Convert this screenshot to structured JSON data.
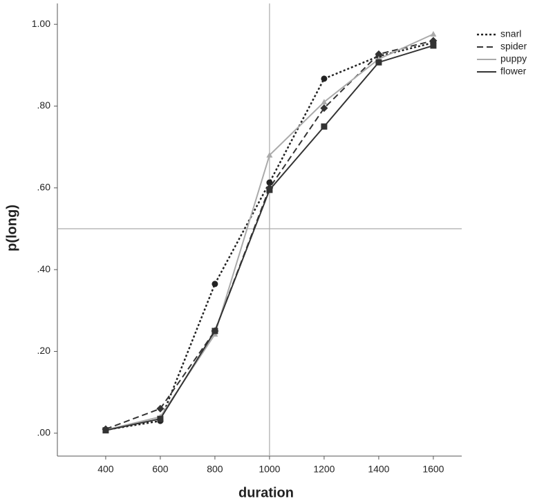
{
  "chart_data": {
    "type": "line",
    "x_label": "duration",
    "y_label": "p(long)",
    "x": [
      400,
      600,
      800,
      1000,
      1200,
      1400,
      1600
    ],
    "series": [
      {
        "name": "snarl",
        "color": "#222222",
        "dash": "dotted",
        "marker": "circle",
        "values": [
          0.008,
          0.03,
          0.365,
          0.613,
          0.867,
          0.922,
          0.955
        ]
      },
      {
        "name": "spider",
        "color": "#333333",
        "dash": "dashed",
        "marker": "diamond",
        "values": [
          0.01,
          0.06,
          0.25,
          0.6,
          0.795,
          0.927,
          0.96
        ]
      },
      {
        "name": "puppy",
        "color": "#aaaaaa",
        "dash": "solid",
        "marker": "triangle",
        "values": [
          0.008,
          0.04,
          0.242,
          0.68,
          0.81,
          0.915,
          0.976
        ]
      },
      {
        "name": "flower",
        "color": "#333333",
        "dash": "solid",
        "marker": "square",
        "values": [
          0.007,
          0.035,
          0.25,
          0.595,
          0.75,
          0.907,
          0.948
        ]
      }
    ],
    "xlim": [
      223,
      1704
    ],
    "ylim": [
      -0.056,
      1.051
    ],
    "xticks": [
      400,
      600,
      800,
      1000,
      1200,
      1400,
      1600
    ],
    "yticks": [
      {
        "value": 0,
        "label": ".00"
      },
      {
        "value": 0.2,
        "label": ".20"
      },
      {
        "value": 0.4,
        "label": ".40"
      },
      {
        "value": 0.6,
        "label": ".60"
      },
      {
        "value": 0.8,
        "label": ".80"
      },
      {
        "value": 1,
        "label": "1.00"
      }
    ],
    "reference_lines": {
      "x": 1000,
      "y": 0.5,
      "color": "#aaaaaa"
    },
    "legend": "top-right",
    "grid": false
  }
}
